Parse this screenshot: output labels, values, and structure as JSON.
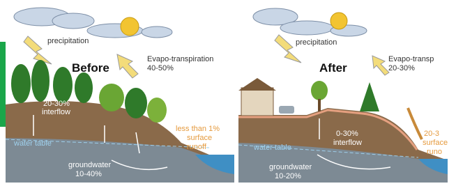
{
  "panels": [
    {
      "title": "Before",
      "precipitation": "precipitation",
      "evapotranspiration": {
        "label": "Evapo-transpiration",
        "amount": "40-50%"
      },
      "interflow": {
        "amount": "20-30%",
        "label": "interflow"
      },
      "water_table": "water table",
      "surface_runoff": [
        "less than 1%",
        "surface",
        "runoff"
      ],
      "groundwater": {
        "label": "groundwater",
        "amount": "10-40%"
      }
    },
    {
      "title": "After",
      "precipitation": "precipitation",
      "evapotranspiration": {
        "label": "Evapo-transp",
        "amount": "20-30%"
      },
      "interflow": {
        "amount": "0-30%",
        "label": "interflow"
      },
      "water_table": "water table",
      "surface_runoff": [
        "20-3",
        "surface",
        "runo"
      ],
      "groundwater": {
        "label": "groundwater",
        "amount": "10-20%"
      }
    }
  ]
}
